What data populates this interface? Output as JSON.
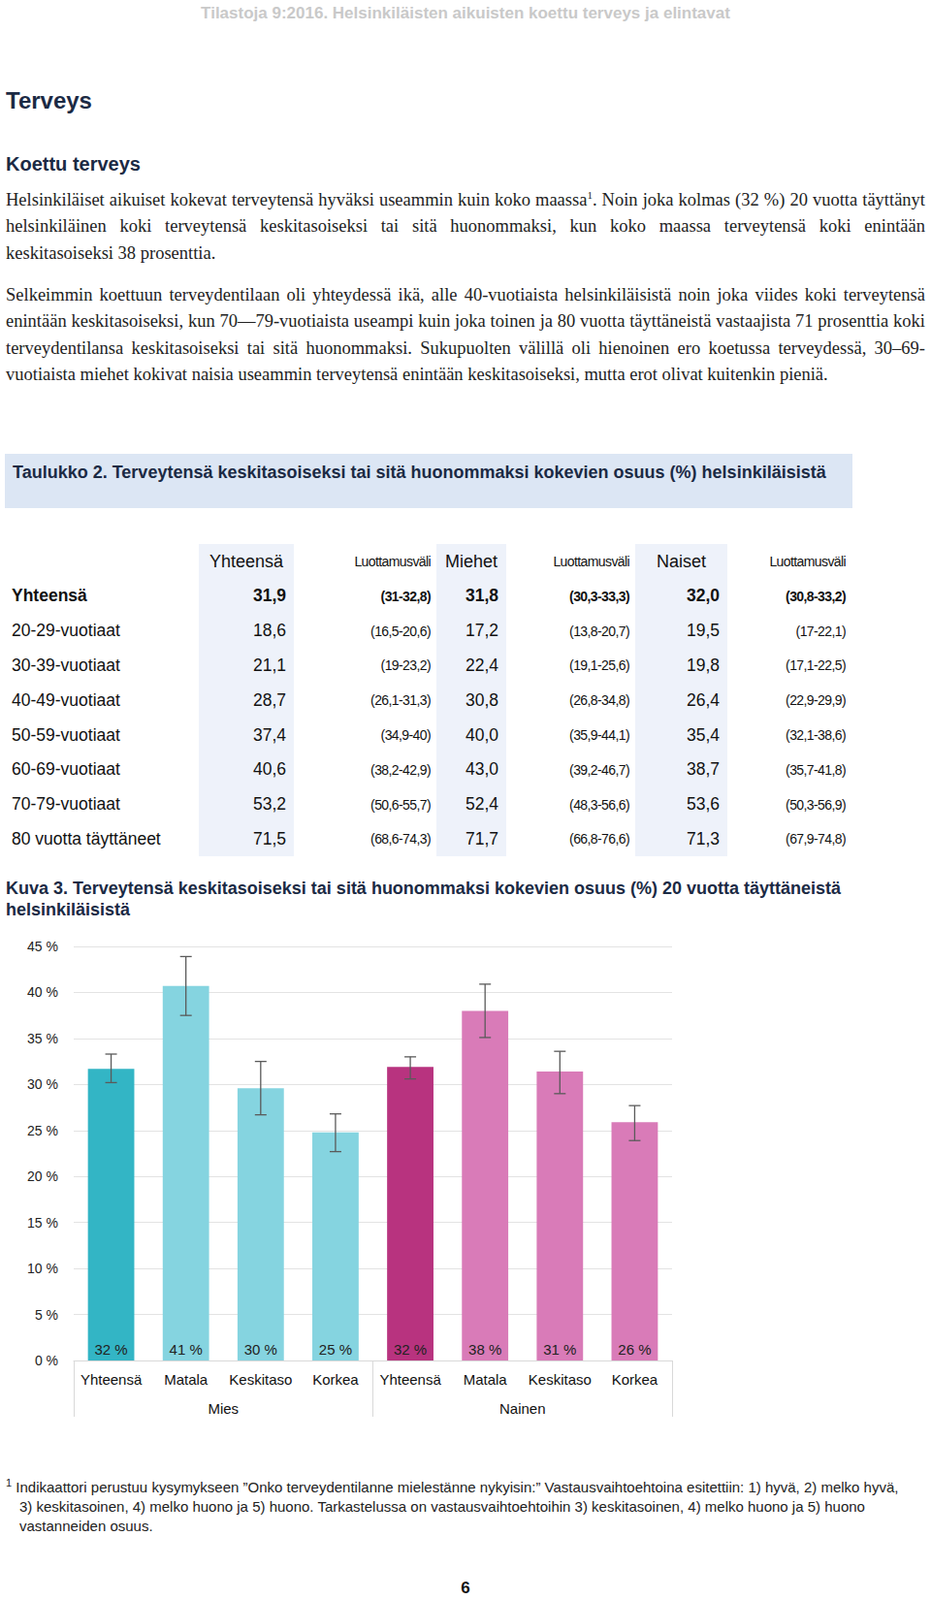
{
  "header": "Tilastoja 9:2016. Helsinkiläisten aikuisten koettu terveys ja elintavat",
  "heading": "Terveys",
  "subheading": "Koettu terveys",
  "paragraph_1": {
    "before_mark": "Helsinkiläiset aikuiset kokevat terveytensä hyväksi useammin kuin koko maassa",
    "mark": "1",
    "after_mark": ". Noin joka kolmas (32 %) 20 vuotta täyttänyt helsinkiläinen koki terveytensä keskitasoiseksi tai sitä huonommaksi, kun koko maassa terveytensä koki enintään keskitasoiseksi 38 prosenttia."
  },
  "paragraph_2": "Selkeimmin koettuun terveydentilaan oli yhteydessä ikä, alle 40-vuotiaista helsinkiläisistä noin joka viides koki terveytensä enintään keskitasoiseksi, kun 70—79-vuotiaista useampi kuin joka toinen ja 80 vuotta täyttäneistä vastaajista 71 prosenttia koki terveydentilansa keskitasoiseksi tai sitä huonommaksi. Sukupuolten välillä oli hienoinen ero koetussa terveydessä, 30–69-vuotiaista miehet kokivat naisia useammin terveytensä enintään keskitasoiseksi, mutta erot olivat kuitenkin pieniä.",
  "table": {
    "caption": "Taulukko 2. Terveytensä keskitasoiseksi tai sitä huonommaksi kokevien osuus (%) helsinkiläisistä",
    "header": [
      "Yhteensä",
      "Luottamusväli",
      "Miehet",
      "Luottamusväli",
      "Naiset",
      "Luottamusväli"
    ],
    "rows": [
      [
        "Yhteensä",
        "31,9",
        "(31-32,8)",
        "31,8",
        "(30,3-33,3)",
        "32,0",
        "(30,8-33,2)"
      ],
      [
        "20-29-vuotiaat",
        "18,6",
        "(16,5-20,6)",
        "17,2",
        "(13,8-20,7)",
        "19,5",
        "(17-22,1)"
      ],
      [
        "30-39-vuotiaat",
        "21,1",
        "(19-23,2)",
        "22,4",
        "(19,1-25,6)",
        "19,8",
        "(17,1-22,5)"
      ],
      [
        "40-49-vuotiaat",
        "28,7",
        "(26,1-31,3)",
        "30,8",
        "(26,8-34,8)",
        "26,4",
        "(22,9-29,9)"
      ],
      [
        "50-59-vuotiaat",
        "37,4",
        "(34,9-40)",
        "40,0",
        "(35,9-44,1)",
        "35,4",
        "(32,1-38,6)"
      ],
      [
        "60-69-vuotiaat",
        "40,6",
        "(38,2-42,9)",
        "43,0",
        "(39,2-46,7)",
        "38,7",
        "(35,7-41,8)"
      ],
      [
        "70-79-vuotiaat",
        "53,2",
        "(50,6-55,7)",
        "52,4",
        "(48,3-56,6)",
        "53,6",
        "(50,3-56,9)"
      ],
      [
        "80 vuotta täyttäneet",
        "71,5",
        "(68,6-74,3)",
        "71,7",
        "(66,8-76,6)",
        "71,3",
        "(67,9-74,8)"
      ]
    ]
  },
  "chart_data": {
    "type": "bar",
    "title": "Kuva 3. Terveytensä keskitasoiseksi tai sitä huonommaksi kokevien osuus (%) 20 vuotta täyttäneistä helsinkiläisistä",
    "groups": [
      {
        "name": "Mies",
        "categories": [
          "Yhteensä",
          "Matala",
          "Keskitaso",
          "Korkea"
        ]
      },
      {
        "name": "Nainen",
        "categories": [
          "Yhteensä",
          "Matala",
          "Keskitaso",
          "Korkea"
        ]
      }
    ],
    "values": [
      31.7,
      40.7,
      29.6,
      24.8,
      31.9,
      38.0,
      31.4,
      25.9
    ],
    "value_labels": [
      "32 %",
      "41 %",
      "30 %",
      "25 %",
      "32 %",
      "38 %",
      "31 %",
      "26 %"
    ],
    "error_low": [
      30.2,
      37.5,
      26.7,
      22.7,
      30.6,
      35.1,
      29.0,
      23.9
    ],
    "error_high": [
      33.3,
      43.9,
      32.5,
      26.8,
      33.0,
      40.9,
      33.6,
      27.7
    ],
    "colors": [
      "#33b5c5",
      "#85d4e0",
      "#85d4e0",
      "#85d4e0",
      "#b8337f",
      "#d97bb8",
      "#d97bb8",
      "#d97bb8"
    ],
    "ylim": [
      0,
      45
    ],
    "yticks": [
      {
        "value": 0,
        "label": "0 %"
      },
      {
        "value": 5,
        "label": "5 %"
      },
      {
        "value": 10,
        "label": "10 %"
      },
      {
        "value": 15,
        "label": "15 %"
      },
      {
        "value": 20,
        "label": "20 %"
      },
      {
        "value": 25,
        "label": "25 %"
      },
      {
        "value": 30,
        "label": "30 %"
      },
      {
        "value": 35,
        "label": "35 %"
      },
      {
        "value": 40,
        "label": "40 %"
      },
      {
        "value": 45,
        "label": "45 %"
      }
    ],
    "grid": true,
    "data_labels": true
  },
  "footnote": {
    "mark": "1",
    "text": "Indikaattori perustuu kysymykseen ”Onko terveydentilanne mielestänne nykyisin:” Vastausvaihtoehtoina esitettiin: 1) hyvä, 2) melko hyvä, 3) keskitasoinen, 4) melko huono ja 5) huono. Tarkastelussa on vastausvaihtoehtoihin 3) keskitasoinen, 4) melko huono ja 5) huono vastanneiden osuus."
  },
  "page_number": "6"
}
